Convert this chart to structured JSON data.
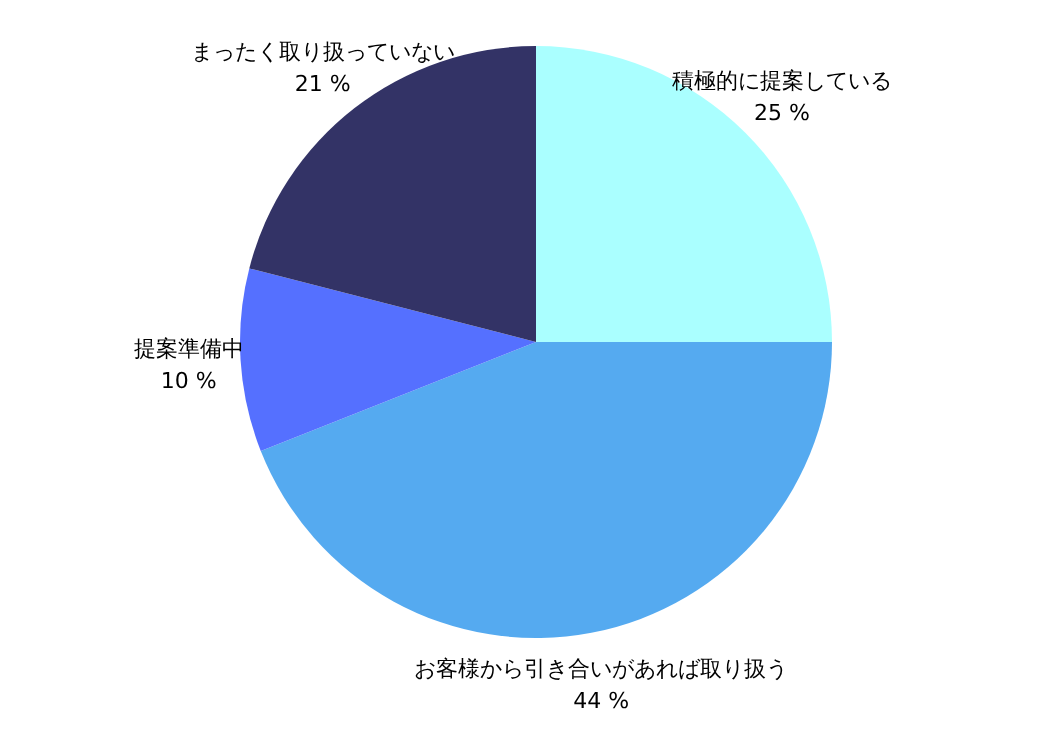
{
  "chart_data": {
    "type": "pie",
    "categories": [
      "積極的に提案している",
      "お客様から引き合いがあれば取り扱う",
      "提案準備中",
      "まったく取り扱っていない"
    ],
    "values": [
      25,
      44,
      10,
      21
    ],
    "value_labels": [
      "25 %",
      "44 %",
      "10 %",
      "21 %"
    ],
    "colors": [
      "#aaffff",
      "#55aaf0",
      "#5570ff",
      "#333366"
    ],
    "legend": false
  }
}
